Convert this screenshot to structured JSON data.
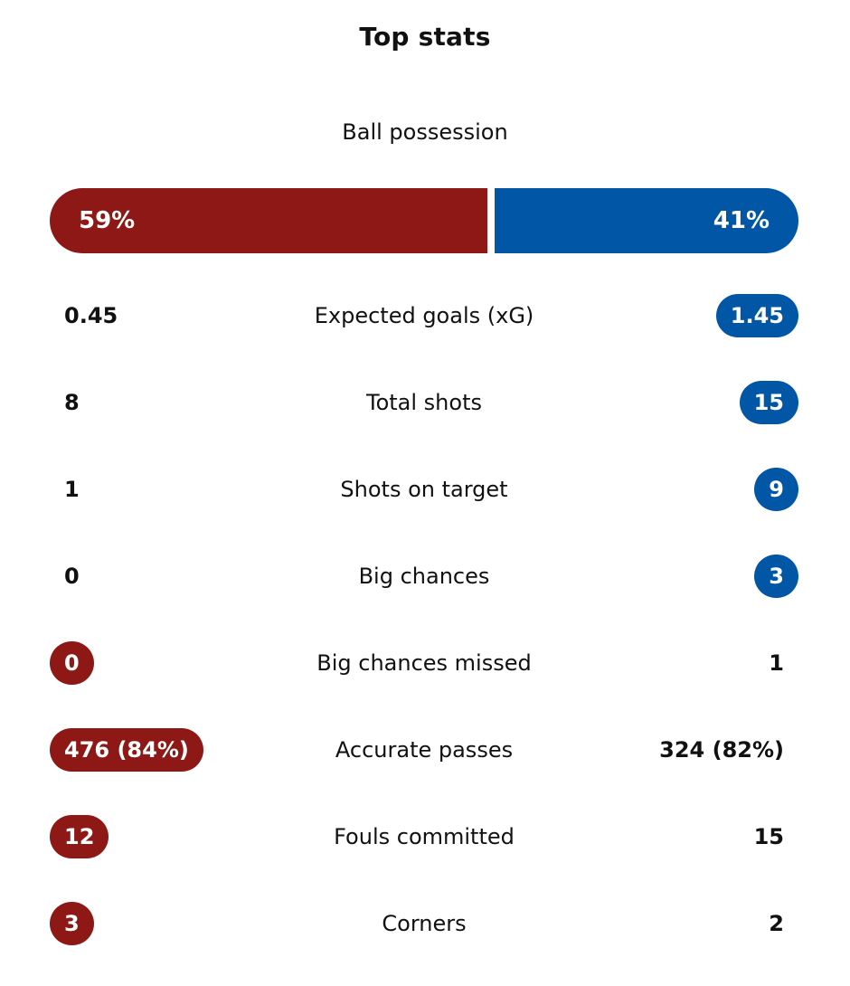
{
  "title": "Top stats",
  "colors": {
    "home": "#8e1816",
    "away": "#0156a6"
  },
  "possession": {
    "label": "Ball possession",
    "home": "59%",
    "away": "41%",
    "home_share": 59,
    "away_share": 41
  },
  "stats": [
    {
      "label": "Expected goals (xG)",
      "home": "0.45",
      "away": "1.45",
      "highlight": "away"
    },
    {
      "label": "Total shots",
      "home": "8",
      "away": "15",
      "highlight": "away"
    },
    {
      "label": "Shots on target",
      "home": "1",
      "away": "9",
      "highlight": "away"
    },
    {
      "label": "Big chances",
      "home": "0",
      "away": "3",
      "highlight": "away"
    },
    {
      "label": "Big chances missed",
      "home": "0",
      "away": "1",
      "highlight": "home"
    },
    {
      "label": "Accurate passes",
      "home": "476 (84%)",
      "away": "324 (82%)",
      "highlight": "home"
    },
    {
      "label": "Fouls committed",
      "home": "12",
      "away": "15",
      "highlight": "home"
    },
    {
      "label": "Corners",
      "home": "3",
      "away": "2",
      "highlight": "home"
    }
  ]
}
